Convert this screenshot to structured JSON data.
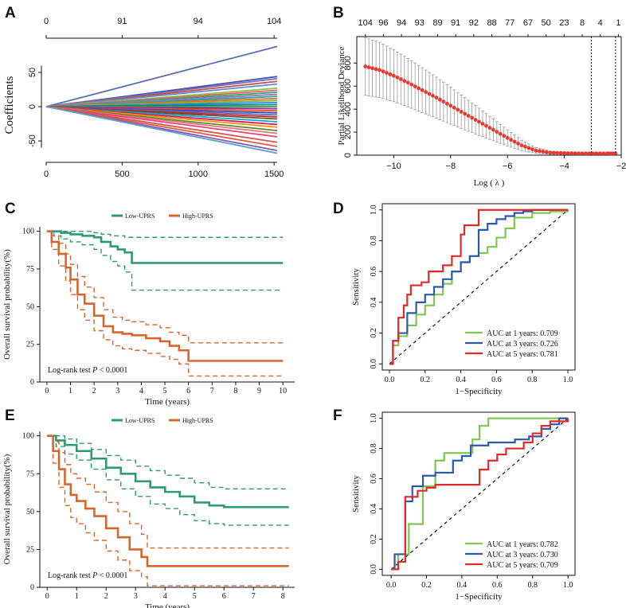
{
  "chart_data": [
    {
      "panel": "A",
      "type": "line",
      "ylabel": "Coefficients",
      "xlabel": "",
      "xlim": [
        0,
        1520
      ],
      "ylim": [
        -72,
        100
      ],
      "xticks": [
        "0",
        "500",
        "1000",
        "1500"
      ],
      "yticks": [
        "-50",
        "0",
        "50"
      ],
      "top_ticks": [
        "0",
        "91",
        "94",
        "104"
      ],
      "x_end": 1520,
      "end_values": [
        88,
        44,
        41,
        37,
        33,
        27,
        24,
        21,
        18,
        15,
        12,
        9,
        6,
        3,
        0,
        -3,
        -6,
        -9,
        -12,
        -15,
        -18,
        -22,
        -26,
        -30,
        -35,
        -39,
        -44,
        -52,
        -58,
        -64,
        -68
      ],
      "colors": [
        "#5a6db3",
        "#4455aa",
        "#7a6ab5",
        "#c0504d",
        "#5b8dd6",
        "#8bc34a",
        "#e06666",
        "#3fa16a",
        "#9575cd",
        "#26a69a",
        "#ef6c00",
        "#7cb342",
        "#1e88e5",
        "#00897b",
        "#43a047",
        "#8e24aa",
        "#f4511e",
        "#3949ab",
        "#5c6bc0",
        "#c62828",
        "#6d4c41",
        "#00acc1",
        "#d81b60",
        "#fb8c00",
        "#558b2f",
        "#e57373",
        "#ec407a",
        "#d9534f",
        "#e35d3b",
        "#7e57c2",
        "#5fa3c7"
      ]
    },
    {
      "panel": "B",
      "type": "line",
      "xlabel": "Log ( λ )",
      "ylabel": "Partial Likelihood Deviance",
      "xlim": [
        -11.3,
        -2
      ],
      "ylim": [
        0,
        1030
      ],
      "xticks": [
        "−10",
        "−8",
        "−6",
        "−4",
        "−2"
      ],
      "yticks": [
        "0",
        "200",
        "400",
        "600",
        "800"
      ],
      "top_ticks": [
        "104",
        "96",
        "94",
        "93",
        "89",
        "91",
        "92",
        "88",
        "77",
        "67",
        "50",
        "23",
        "8",
        "4",
        "1"
      ],
      "vlines": [
        -3.05,
        -2.2
      ],
      "x": [
        -11,
        -10.5,
        -10,
        -9.5,
        -9,
        -8.5,
        -8,
        -7.5,
        -7,
        -6.5,
        -6,
        -5.5,
        -5,
        -4.5,
        -4,
        -3.5,
        -3,
        -2.5,
        -2.2
      ],
      "mean": [
        770,
        740,
        690,
        630,
        565,
        500,
        430,
        360,
        290,
        220,
        150,
        85,
        40,
        22,
        18,
        16,
        15,
        15,
        15
      ],
      "err": [
        250,
        240,
        225,
        210,
        195,
        178,
        160,
        140,
        118,
        95,
        70,
        45,
        25,
        14,
        10,
        8,
        8,
        8,
        8
      ]
    },
    {
      "panel": "C",
      "type": "line",
      "xlabel": "Time (years)",
      "ylabel": "Overall survival probability(%)",
      "xlim": [
        -0.3,
        10.5
      ],
      "ylim": [
        0,
        103
      ],
      "xticks": [
        "0",
        "1",
        "2",
        "3",
        "4",
        "5",
        "6",
        "7",
        "8",
        "9",
        "10"
      ],
      "yticks": [
        "0",
        "25",
        "50",
        "75",
        "100"
      ],
      "legend": [
        "Low-UPRS",
        "High-UPRS"
      ],
      "annotation_pre": "Log-rank test ",
      "annotation_p": "P",
      "annotation_post": " < 0.0001",
      "series": [
        {
          "name": "Low-UPRS",
          "color": "#2e9a70",
          "x": [
            0,
            0.3,
            0.6,
            1.0,
            1.5,
            2.0,
            2.3,
            2.7,
            3.0,
            3.3,
            3.6,
            10
          ],
          "y": [
            100,
            100,
            99,
            98,
            97,
            96,
            93,
            90,
            88,
            86,
            79,
            79
          ],
          "upper": [
            100,
            100,
            100,
            100,
            100,
            99,
            98,
            97,
            97,
            96,
            96,
            96
          ],
          "lower": [
            100,
            97,
            95,
            93,
            91,
            88,
            84,
            80,
            77,
            73,
            61,
            61
          ]
        },
        {
          "name": "High-UPRS",
          "color": "#d8662c",
          "x": [
            0,
            0.2,
            0.5,
            0.8,
            1.0,
            1.3,
            1.6,
            2.0,
            2.4,
            2.8,
            3.2,
            3.6,
            4.2,
            4.8,
            5.2,
            5.6,
            6.0,
            10
          ],
          "y": [
            100,
            93,
            85,
            76,
            68,
            58,
            52,
            44,
            37,
            33,
            32,
            31,
            29,
            27,
            24,
            21,
            14,
            14
          ],
          "upper": [
            100,
            97,
            92,
            85,
            78,
            70,
            63,
            56,
            48,
            43,
            41,
            40,
            38,
            36,
            33,
            31,
            26,
            26
          ],
          "lower": [
            100,
            88,
            77,
            67,
            58,
            48,
            41,
            34,
            28,
            24,
            22,
            21,
            19,
            17,
            15,
            12,
            4,
            4
          ]
        }
      ]
    },
    {
      "panel": "D",
      "type": "line",
      "xlabel": "1−Specificity",
      "ylabel": "Sensitivity",
      "xlim": [
        -0.04,
        1.04
      ],
      "ylim": [
        -0.04,
        1.04
      ],
      "xticks": [
        "0.0",
        "0.2",
        "0.4",
        "0.6",
        "0.8",
        "1.0"
      ],
      "yticks": [
        "0.0",
        "0.2",
        "0.4",
        "0.6",
        "0.8",
        "1.0"
      ],
      "series": [
        {
          "name": "AUC at 1 years: 0.709",
          "color": "#7ec850",
          "x": [
            0,
            0.02,
            0.05,
            0.1,
            0.15,
            0.2,
            0.25,
            0.3,
            0.35,
            0.4,
            0.45,
            0.5,
            0.55,
            0.6,
            0.65,
            0.7,
            0.8,
            0.9,
            1
          ],
          "y": [
            0,
            0.12,
            0.18,
            0.25,
            0.32,
            0.38,
            0.45,
            0.52,
            0.6,
            0.66,
            0.7,
            0.72,
            0.76,
            0.82,
            0.88,
            0.95,
            0.98,
            0.99,
            1
          ]
        },
        {
          "name": "AUC at 3 years: 0.726",
          "color": "#2e58b0",
          "x": [
            0,
            0.02,
            0.05,
            0.1,
            0.15,
            0.2,
            0.25,
            0.3,
            0.35,
            0.4,
            0.45,
            0.5,
            0.55,
            0.6,
            0.65,
            0.7,
            0.75,
            0.8,
            1
          ],
          "y": [
            0,
            0.15,
            0.2,
            0.33,
            0.4,
            0.45,
            0.5,
            0.55,
            0.6,
            0.66,
            0.7,
            0.87,
            0.91,
            0.94,
            0.96,
            0.98,
            0.99,
            1,
            1
          ]
        },
        {
          "name": "AUC at 5 years: 0.781",
          "color": "#e02a2a",
          "x": [
            0,
            0.02,
            0.05,
            0.08,
            0.1,
            0.12,
            0.18,
            0.22,
            0.3,
            0.35,
            0.4,
            0.42,
            0.45,
            0.5,
            1
          ],
          "y": [
            0,
            0.15,
            0.3,
            0.38,
            0.45,
            0.51,
            0.53,
            0.6,
            0.64,
            0.7,
            0.84,
            0.9,
            0.9,
            1,
            1
          ]
        }
      ]
    },
    {
      "panel": "E",
      "type": "line",
      "xlabel": "Time (years)",
      "ylabel": "Overall survival probability(%)",
      "xlim": [
        -0.25,
        8.4
      ],
      "ylim": [
        0,
        103
      ],
      "xticks": [
        "0",
        "1",
        "2",
        "3",
        "4",
        "5",
        "6",
        "7",
        "8"
      ],
      "yticks": [
        "0",
        "25",
        "50",
        "75",
        "100"
      ],
      "legend": [
        "Low-UPRS",
        "High-UPRS"
      ],
      "annotation_pre": "Log-rank test ",
      "annotation_p": "P",
      "annotation_post": " < 0.0001",
      "series": [
        {
          "name": "Low-UPRS",
          "color": "#2e9a70",
          "x": [
            0,
            0.3,
            0.6,
            1.0,
            1.5,
            2.0,
            2.5,
            3.0,
            3.5,
            4.0,
            4.5,
            5.0,
            5.5,
            6.0,
            8.2
          ],
          "y": [
            100,
            97,
            94,
            90,
            85,
            79,
            75,
            70,
            66,
            63,
            60,
            56,
            54,
            53,
            53
          ],
          "upper": [
            100,
            100,
            98,
            95,
            91,
            87,
            84,
            80,
            77,
            74,
            72,
            69,
            66,
            65,
            65
          ],
          "lower": [
            100,
            93,
            88,
            84,
            78,
            71,
            65,
            60,
            55,
            52,
            48,
            44,
            42,
            41,
            41
          ]
        },
        {
          "name": "High-UPRS",
          "color": "#d8662c",
          "x": [
            0,
            0.2,
            0.4,
            0.6,
            0.8,
            1.0,
            1.3,
            1.6,
            2.0,
            2.4,
            2.8,
            3.2,
            3.4,
            8.2
          ],
          "y": [
            100,
            90,
            78,
            68,
            61,
            57,
            52,
            47,
            39,
            33,
            25,
            20,
            14,
            14
          ],
          "upper": [
            100,
            96,
            89,
            81,
            75,
            72,
            68,
            63,
            56,
            50,
            42,
            35,
            26,
            26
          ],
          "lower": [
            100,
            82,
            66,
            54,
            46,
            42,
            36,
            31,
            24,
            18,
            11,
            7,
            1,
            1
          ]
        }
      ]
    },
    {
      "panel": "F",
      "type": "line",
      "xlabel": "1−Specificity",
      "ylabel": "Sensitivity",
      "xlim": [
        -0.05,
        1.04
      ],
      "ylim": [
        -0.04,
        1.04
      ],
      "xticks": [
        "0.0",
        "0.2",
        "0.4",
        "0.6",
        "0.8",
        "1.0"
      ],
      "yticks": [
        "0.0",
        "0.2",
        "0.4",
        "0.6",
        "0.8",
        "1.0"
      ],
      "series": [
        {
          "name": "AUC at 1 years: 0.782",
          "color": "#7ec850",
          "x": [
            0,
            0.04,
            0.1,
            0.18,
            0.25,
            0.3,
            0.42,
            0.46,
            0.5,
            0.55,
            1
          ],
          "y": [
            0,
            0.1,
            0.3,
            0.55,
            0.72,
            0.77,
            0.77,
            0.86,
            0.95,
            1,
            1
          ]
        },
        {
          "name": "AUC at 3 years: 0.730",
          "color": "#2e58b0",
          "x": [
            0,
            0.02,
            0.08,
            0.12,
            0.18,
            0.25,
            0.3,
            0.35,
            0.4,
            0.45,
            0.55,
            0.65,
            0.7,
            0.78,
            0.85,
            0.9,
            0.95,
            1
          ],
          "y": [
            0,
            0.1,
            0.45,
            0.55,
            0.62,
            0.64,
            0.64,
            0.72,
            0.75,
            0.82,
            0.84,
            0.84,
            0.86,
            0.88,
            0.93,
            0.96,
            1,
            1
          ]
        },
        {
          "name": "AUC at 5 years: 0.709",
          "color": "#e02a2a",
          "x": [
            0,
            0.04,
            0.08,
            0.15,
            0.2,
            0.25,
            0.35,
            0.45,
            0.5,
            0.55,
            0.6,
            0.65,
            0.75,
            0.8,
            0.85,
            0.9,
            1
          ],
          "y": [
            0,
            0.05,
            0.48,
            0.52,
            0.54,
            0.56,
            0.56,
            0.56,
            0.66,
            0.72,
            0.76,
            0.8,
            0.84,
            0.9,
            0.95,
            0.98,
            1
          ]
        }
      ]
    }
  ]
}
